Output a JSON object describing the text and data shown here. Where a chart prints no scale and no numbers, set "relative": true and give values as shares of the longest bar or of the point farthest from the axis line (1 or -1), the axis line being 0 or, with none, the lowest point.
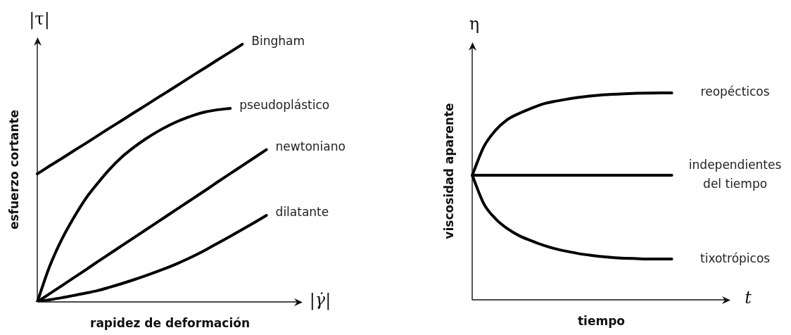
{
  "chart_data": [
    {
      "type": "line",
      "relative": true,
      "tick_labels": false,
      "line_style": "solid",
      "xlabel": "rapidez de deformación",
      "ylabel": "esfuerzo cortante",
      "annotations": [
        "|τ|",
        "|γ̇|"
      ],
      "categories": [
        null,
        null,
        null,
        null,
        null,
        null,
        null,
        null,
        null,
        null,
        null,
        null,
        null,
        null,
        null,
        null,
        null,
        null,
        null,
        null,
        null,
        null,
        null
      ],
      "series": [
        {
          "name": "Bingham",
          "color": "#000000",
          "values": [
            0.497,
            0.527,
            0.556,
            0.586,
            0.615,
            0.645,
            0.675,
            0.704,
            0.734,
            0.763,
            0.793,
            0.822,
            0.852,
            0.882,
            0.911,
            0.941,
            0.97,
            1.0,
            null,
            null,
            null,
            null,
            null
          ]
        },
        {
          "name": "pseudoplástico",
          "color": "#000000",
          "values": [
            0,
            0.135,
            0.24,
            0.325,
            0.4,
            0.46,
            0.515,
            0.562,
            0.6,
            0.633,
            0.662,
            0.687,
            0.708,
            0.725,
            0.738,
            0.746,
            0.751,
            null,
            null,
            null,
            null,
            null,
            null
          ]
        },
        {
          "name": "newtoniano",
          "color": "#000000",
          "values": [
            0,
            0.031,
            0.062,
            0.093,
            0.124,
            0.156,
            0.187,
            0.218,
            0.249,
            0.28,
            0.311,
            0.342,
            0.373,
            0.404,
            0.435,
            0.467,
            0.498,
            0.529,
            0.56,
            0.591,
            null,
            null,
            null
          ]
        },
        {
          "name": "dilatante",
          "color": "#000000",
          "values": [
            0,
            0.008,
            0.016,
            0.025,
            0.034,
            0.044,
            0.057,
            0.071,
            0.086,
            0.102,
            0.119,
            0.137,
            0.157,
            0.179,
            0.203,
            0.229,
            0.255,
            0.281,
            0.308,
            0.336,
            null,
            null,
            null
          ]
        }
      ]
    },
    {
      "type": "line",
      "relative": true,
      "tick_labels": false,
      "line_style": "solid",
      "xlabel": "tiempo",
      "ylabel": "viscosidad aparente",
      "annotations": [
        "η",
        "t"
      ],
      "categories": [
        null,
        null,
        null,
        null,
        null,
        null,
        null,
        null,
        null,
        null,
        null,
        null,
        null,
        null,
        null,
        null,
        null,
        null,
        null,
        null,
        null,
        null,
        null
      ],
      "series": [
        {
          "name": "reopécticos",
          "color": "#000000",
          "values": [
            0.602,
            0.741,
            0.82,
            0.871,
            0.901,
            0.925,
            0.946,
            0.959,
            0.969,
            0.978,
            0.985,
            0.99,
            0.993,
            0.996,
            0.998,
            0.999,
            1.0,
            1.0,
            null,
            null,
            null,
            null,
            null
          ]
        },
        {
          "name": "independientes del tiempo",
          "color": "#000000",
          "values": [
            0.602,
            0.602,
            0.602,
            0.602,
            0.602,
            0.602,
            0.602,
            0.602,
            0.602,
            0.602,
            0.602,
            0.602,
            0.602,
            0.602,
            0.602,
            0.602,
            0.602,
            0.602,
            null,
            null,
            null,
            null,
            null
          ]
        },
        {
          "name": "tixotrópicos",
          "color": "#000000",
          "values": [
            0.602,
            0.463,
            0.391,
            0.344,
            0.31,
            0.286,
            0.265,
            0.248,
            0.235,
            0.224,
            0.216,
            0.209,
            0.204,
            0.201,
            0.199,
            0.197,
            0.197,
            0.197,
            null,
            null,
            null,
            null,
            null
          ]
        }
      ]
    }
  ]
}
